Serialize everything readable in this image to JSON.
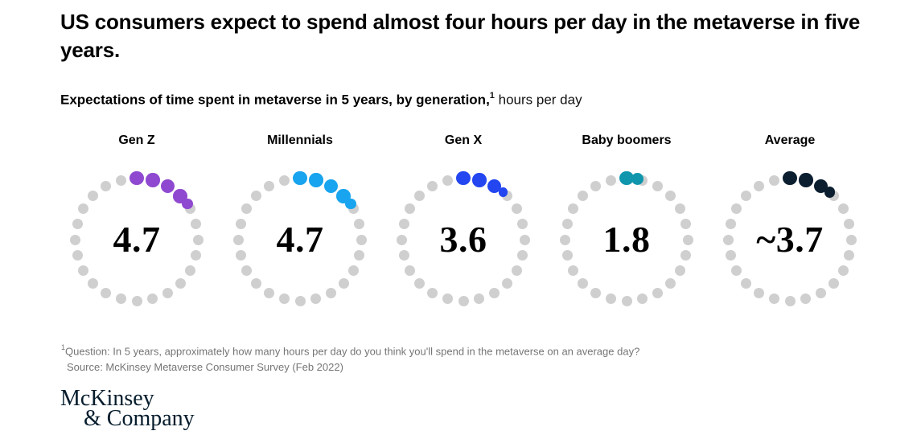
{
  "title": "US consumers expect to spend almost four hours per day in the metaverse in five years.",
  "subtitle": {
    "bold": "Expectations of time spent in metaverse in 5 years, by generation,",
    "sup": "1",
    "rest": " hours per day"
  },
  "charts": [
    {
      "label": "Gen Z",
      "value": 4.7,
      "display": "4.7",
      "color": "#8f49d0"
    },
    {
      "label": "Millennials",
      "value": 4.7,
      "display": "4.7",
      "color": "#18a4ee"
    },
    {
      "label": "Gen X",
      "value": 3.6,
      "display": "3.6",
      "color": "#2346f0"
    },
    {
      "label": "Baby boomers",
      "value": 1.8,
      "display": "1.8",
      "color": "#0f96ad"
    },
    {
      "label": "Average",
      "value": 3.7,
      "display": "~3.7",
      "color": "#0c1f31"
    }
  ],
  "chart_data": {
    "type": "dot-ring",
    "description": "Five rings of 24 dots each (24 hours in a day). Colored dots = expected hours per day spent in the metaverse in 5 years; the final smaller colored dot represents the fractional hour. Value is printed in the ring center.",
    "categories": [
      "Gen Z",
      "Millennials",
      "Gen X",
      "Baby boomers",
      "Average"
    ],
    "values": [
      4.7,
      4.7,
      3.6,
      1.8,
      3.7
    ],
    "display_values": [
      "4.7",
      "4.7",
      "3.6",
      "1.8",
      "~3.7"
    ],
    "series_colors": [
      "#8f49d0",
      "#18a4ee",
      "#2346f0",
      "#0f96ad",
      "#0c1f31"
    ],
    "gray_color": "#cfcfcf",
    "dots_total": 24,
    "title": "Expectations of time spent in metaverse in 5 years, by generation",
    "unit": "hours per day"
  },
  "footnote": {
    "sup": "1",
    "question": "Question: In 5 years, approximately how many hours per day do you think you'll spend in the metaverse on an average day?",
    "source": "Source: McKinsey Metaverse Consumer Survey (Feb 2022)"
  },
  "logo": {
    "line1": "McKinsey",
    "line2": "& Company"
  }
}
